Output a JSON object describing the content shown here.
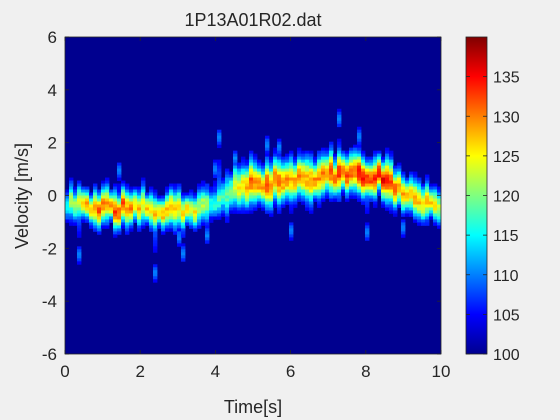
{
  "chart_data": {
    "type": "heatmap",
    "title": "1P13A01R02.dat",
    "xlabel": "Time[s]",
    "ylabel": "Velocity [m/s]",
    "xlim": [
      0,
      10
    ],
    "ylim": [
      -6,
      6
    ],
    "xticks": [
      0,
      2,
      4,
      6,
      8,
      10
    ],
    "xtick_labels": [
      "0",
      "2",
      "4",
      "6",
      "8",
      "10"
    ],
    "yticks": [
      -6,
      -4,
      -2,
      0,
      2,
      4,
      6
    ],
    "ytick_labels": [
      "-6",
      "-4",
      "-2",
      "0",
      "2",
      "4",
      "6"
    ],
    "colormap": "jet",
    "colorbar": {
      "range": [
        100,
        140
      ],
      "ticks": [
        100,
        105,
        110,
        115,
        120,
        125,
        130,
        135
      ],
      "tick_labels": [
        "100",
        "105",
        "110",
        "115",
        "120",
        "125",
        "130",
        "135"
      ]
    },
    "background_value": 100,
    "ridge": {
      "time": [
        0,
        0.5,
        1,
        1.5,
        2,
        2.5,
        3,
        3.5,
        4,
        4.5,
        5,
        5.5,
        6,
        6.5,
        7,
        7.5,
        8,
        8.5,
        9,
        9.5,
        10
      ],
      "velocity": [
        -0.2,
        -0.4,
        -0.45,
        -0.5,
        -0.4,
        -0.6,
        -0.6,
        -0.5,
        -0.2,
        0.2,
        0.4,
        0.5,
        0.6,
        0.6,
        0.8,
        0.8,
        0.7,
        0.7,
        0.1,
        -0.3,
        -0.4
      ],
      "peak_intensity": [
        118,
        130,
        132,
        134,
        128,
        130,
        130,
        126,
        118,
        124,
        132,
        134,
        130,
        132,
        132,
        134,
        136,
        138,
        128,
        130,
        126
      ]
    }
  },
  "colors": {
    "background": "#f0f0f0",
    "axis_text": "#262626",
    "plot_background": "#00008f"
  }
}
